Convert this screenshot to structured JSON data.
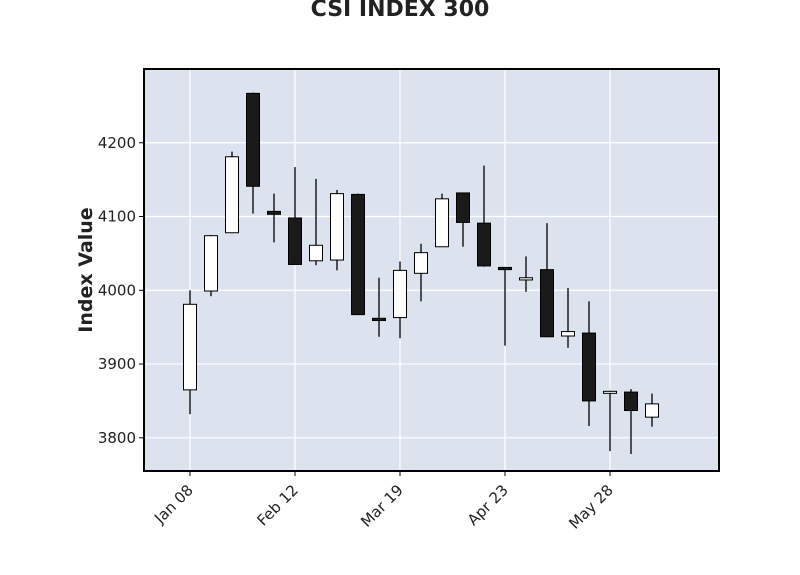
{
  "chart_data": {
    "type": "candlestick",
    "title": "CSI INDEX 300",
    "xlabel": "",
    "ylabel": "Index Value",
    "ylim": [
      3755,
      4300
    ],
    "y_ticks": [
      3800,
      3900,
      4000,
      4100,
      4200
    ],
    "x_tick_labels": [
      "Jan 08",
      "Feb 12",
      "Mar 19",
      "Apr 23",
      "May 28"
    ],
    "x_tick_index": [
      0,
      5,
      10,
      15,
      20
    ],
    "up_color": "#ffffff",
    "down_color": "#1a1a1a",
    "grid": true,
    "background": "#dde2ef",
    "candles": [
      {
        "open": 3865,
        "high": 4000,
        "low": 3832,
        "close": 3981
      },
      {
        "open": 3999,
        "high": 4075,
        "low": 3992,
        "close": 4074
      },
      {
        "open": 4078,
        "high": 4188,
        "low": 4078,
        "close": 4181
      },
      {
        "open": 4267,
        "high": 4268,
        "low": 4104,
        "close": 4141
      },
      {
        "open": 4107,
        "high": 4131,
        "low": 4065,
        "close": 4103
      },
      {
        "open": 4098,
        "high": 4167,
        "low": 4035,
        "close": 4035
      },
      {
        "open": 4040,
        "high": 4151,
        "low": 4034,
        "close": 4061
      },
      {
        "open": 4041,
        "high": 4136,
        "low": 4027,
        "close": 4131
      },
      {
        "open": 4130,
        "high": 4131,
        "low": 3967,
        "close": 3967
      },
      {
        "open": 3962,
        "high": 4017,
        "low": 3937,
        "close": 3959
      },
      {
        "open": 3963,
        "high": 4039,
        "low": 3935,
        "close": 4027
      },
      {
        "open": 4023,
        "high": 4063,
        "low": 3985,
        "close": 4051
      },
      {
        "open": 4059,
        "high": 4131,
        "low": 4059,
        "close": 4124
      },
      {
        "open": 4132,
        "high": 4132,
        "low": 4059,
        "close": 4092
      },
      {
        "open": 4091,
        "high": 4169,
        "low": 4032,
        "close": 4033
      },
      {
        "open": 4031,
        "high": 4031,
        "low": 3925,
        "close": 4028
      },
      {
        "open": 4014,
        "high": 4046,
        "low": 3998,
        "close": 4017
      },
      {
        "open": 4028,
        "high": 4091,
        "low": 3937,
        "close": 3937
      },
      {
        "open": 3938,
        "high": 4003,
        "low": 3922,
        "close": 3944
      },
      {
        "open": 3942,
        "high": 3985,
        "low": 3816,
        "close": 3850
      },
      {
        "open": 3862,
        "high": 3864,
        "low": 3782,
        "close": 3863
      },
      {
        "open": 3862,
        "high": 3866,
        "low": 3778,
        "close": 3837
      },
      {
        "open": 3828,
        "high": 3860,
        "low": 3815,
        "close": 3846
      }
    ]
  }
}
